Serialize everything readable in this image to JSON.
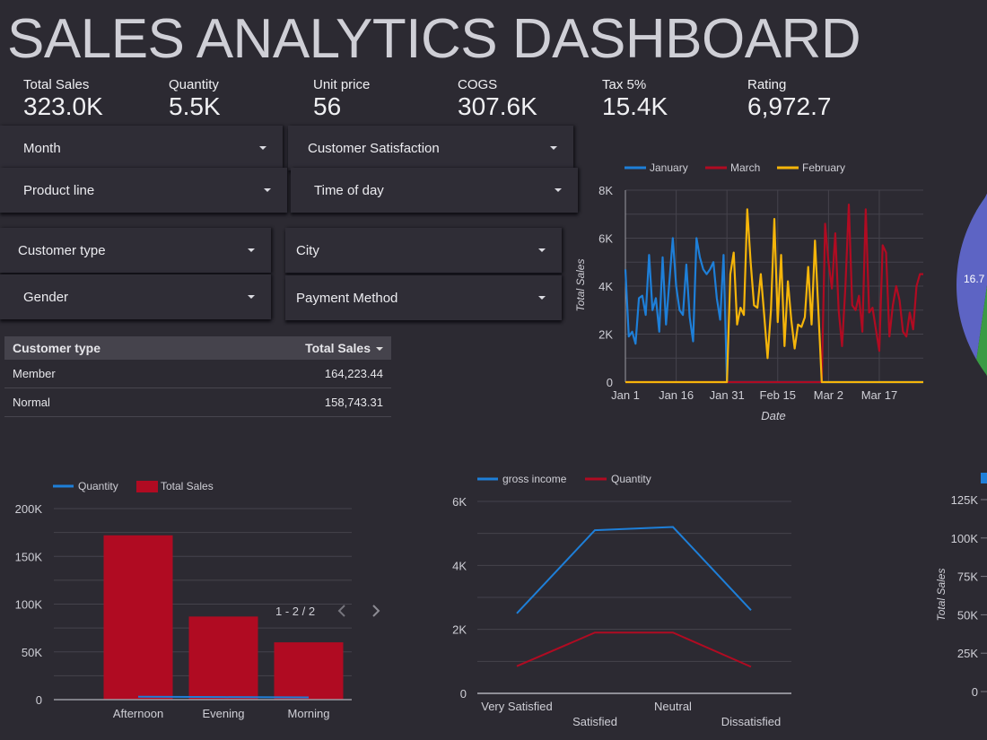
{
  "header": {
    "title": "SALES ANALYTICS DASHBOARD"
  },
  "kpis": [
    {
      "label": "Total Sales",
      "value": "323.0K"
    },
    {
      "label": "Quantity",
      "value": "5.5K"
    },
    {
      "label": "Unit price",
      "value": "56"
    },
    {
      "label": "COGS",
      "value": "307.6K"
    },
    {
      "label": "Tax 5%",
      "value": "15.4K"
    },
    {
      "label": "Rating",
      "value": "6,972.7"
    }
  ],
  "filters": {
    "month": "Month",
    "customer_satisfaction": "Customer Satisfaction",
    "product_line": "Product line",
    "time_of_day": "Time of day",
    "customer_type": "Customer type",
    "city": "City",
    "gender": "Gender",
    "payment_method": "Payment Method"
  },
  "table": {
    "columns": [
      "Customer type",
      "Total Sales"
    ],
    "rows": [
      [
        "Member",
        "164,223.44"
      ],
      [
        "Normal",
        "158,743.31"
      ]
    ]
  },
  "colors": {
    "blue": "#1e7fd8",
    "red": "#b00b22",
    "yellow": "#f5b50a",
    "teal": "#0f9a8e",
    "purple": "#5d64c4",
    "green": "#3a9b45",
    "background": "#2c2a32"
  },
  "chart_data": [
    {
      "type": "line",
      "xlabel": "Date",
      "ylabel": "Total Sales",
      "ylim": [
        0,
        8000
      ],
      "yticks": [
        "0",
        "2K",
        "4K",
        "6K",
        "8K"
      ],
      "xticks": [
        "Jan 1",
        "Jan 16",
        "Jan 31",
        "Feb 15",
        "Mar 2",
        "Mar 17"
      ],
      "xrange": [
        "Jan 1",
        "Mar 30"
      ],
      "grid": true,
      "legend": "top",
      "series": [
        {
          "name": "January",
          "color": "#1e7fd8",
          "values": [
            4700,
            1900,
            2100,
            1600,
            3500,
            3600,
            2800,
            5300,
            3000,
            3500,
            2100,
            5200,
            2400,
            4200,
            6000,
            4000,
            3000,
            2800,
            4900,
            2700,
            1700,
            6000,
            5200,
            4700,
            4500,
            4700,
            5000,
            3500,
            2600,
            5300,
            0,
            0,
            0,
            0,
            0,
            0,
            0,
            0,
            0,
            0,
            0,
            0,
            0,
            0,
            0,
            0,
            0,
            0,
            0,
            0,
            0,
            0,
            0,
            0,
            0,
            0,
            0,
            0,
            0,
            0,
            0,
            0,
            0,
            0,
            0,
            0,
            0,
            0,
            0,
            0,
            0,
            0,
            0,
            0,
            0,
            0,
            0,
            0,
            0,
            0,
            0,
            0,
            0,
            0,
            0,
            0,
            0,
            0,
            0
          ]
        },
        {
          "name": "March",
          "color": "#b00b22",
          "values": [
            0,
            0,
            0,
            0,
            0,
            0,
            0,
            0,
            0,
            0,
            0,
            0,
            0,
            0,
            0,
            0,
            0,
            0,
            0,
            0,
            0,
            0,
            0,
            0,
            0,
            0,
            0,
            0,
            0,
            0,
            0,
            0,
            0,
            0,
            0,
            0,
            0,
            0,
            0,
            0,
            0,
            0,
            0,
            0,
            0,
            0,
            0,
            0,
            0,
            0,
            0,
            0,
            0,
            0,
            0,
            0,
            0,
            0,
            0,
            6600,
            5000,
            3900,
            6200,
            3000,
            1500,
            4000,
            7400,
            3200,
            3000,
            3600,
            2100,
            7200,
            2900,
            3100,
            2200,
            1300,
            5700,
            5400,
            1900,
            3200,
            4000,
            3400,
            2100,
            1900,
            2900,
            2200,
            4000,
            4500,
            4500
          ]
        },
        {
          "name": "February",
          "color": "#f5b50a",
          "values": [
            0,
            0,
            0,
            0,
            0,
            0,
            0,
            0,
            0,
            0,
            0,
            0,
            0,
            0,
            0,
            0,
            0,
            0,
            0,
            0,
            0,
            0,
            0,
            0,
            0,
            0,
            0,
            0,
            0,
            0,
            0,
            4500,
            5400,
            2400,
            3100,
            2800,
            7200,
            5000,
            3200,
            3100,
            4500,
            2800,
            1000,
            3000,
            6800,
            2500,
            5300,
            1500,
            4200,
            2600,
            1400,
            2400,
            2300,
            2700,
            4800,
            2400,
            5900,
            3000,
            0,
            0,
            0,
            0,
            0,
            0,
            0,
            0,
            0,
            0,
            0,
            0,
            0,
            0,
            0,
            0,
            0,
            0,
            0,
            0,
            0,
            0,
            0,
            0,
            0,
            0,
            0,
            0,
            0,
            0,
            0
          ]
        }
      ]
    },
    {
      "type": "bar",
      "categories": [
        "Afternoon",
        "Evening",
        "Morning"
      ],
      "ylim": [
        0,
        200000
      ],
      "yticks": [
        "0",
        "50K",
        "100K",
        "150K",
        "200K"
      ],
      "legend": "top",
      "series": [
        {
          "name": "Quantity",
          "type": "line",
          "color": "#1e7fd8",
          "values": [
            2600,
            2000,
            1500
          ]
        },
        {
          "name": "Total Sales",
          "type": "bar",
          "color": "#b00b22",
          "values": [
            172000,
            87000,
            60000
          ]
        }
      ],
      "pagination": "1 - 2 / 2"
    },
    {
      "type": "line",
      "categories": [
        "Very Satisfied",
        "Satisfied",
        "Neutral",
        "Dissatisfied"
      ],
      "ylim": [
        0,
        6000
      ],
      "yticks": [
        "0",
        "2K",
        "4K",
        "6K"
      ],
      "legend": "top",
      "series": [
        {
          "name": "gross income",
          "color": "#1e7fd8",
          "values": [
            2500,
            5100,
            5200,
            2600
          ]
        },
        {
          "name": "Quantity",
          "color": "#b00b22",
          "values": [
            850,
            1900,
            1900,
            830
          ]
        }
      ]
    },
    {
      "type": "bar",
      "ylabel": "Total Sales",
      "yticks": [
        "0",
        "25K",
        "50K",
        "75K",
        "100K",
        "125K"
      ],
      "legend_color": "#1e7fd8"
    },
    {
      "type": "pie",
      "labels": [
        "16.7"
      ],
      "colors": [
        "#0f9a8e",
        "#5d64c4",
        "#3a9b45"
      ]
    }
  ]
}
